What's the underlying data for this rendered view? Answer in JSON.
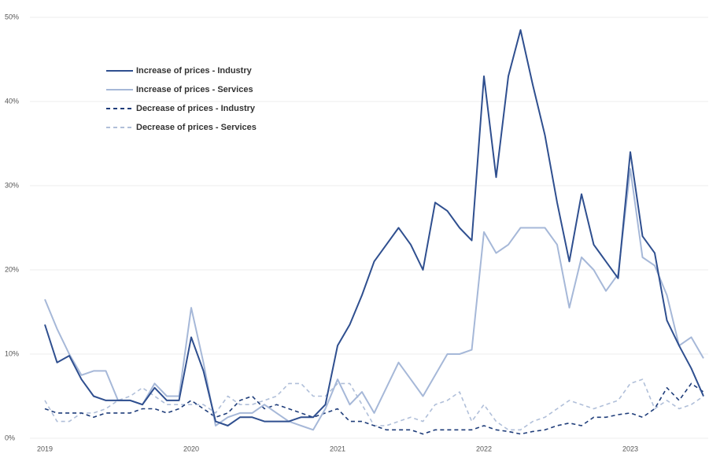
{
  "chart_data": {
    "type": "line",
    "categories": [
      "2019",
      null,
      null,
      null,
      null,
      null,
      null,
      null,
      null,
      null,
      null,
      null,
      "2020",
      null,
      null,
      null,
      null,
      null,
      null,
      null,
      null,
      null,
      null,
      null,
      "2021",
      null,
      null,
      null,
      null,
      null,
      null,
      null,
      null,
      null,
      null,
      null,
      "2022",
      null,
      null,
      null,
      null,
      null,
      null,
      null,
      null,
      null,
      null,
      null,
      "2023",
      null,
      null,
      null,
      null,
      null,
      null
    ],
    "ylim": [
      0,
      50
    ],
    "yticks": [
      {
        "value": 0,
        "label": "0%"
      },
      {
        "value": 10,
        "label": "10%"
      },
      {
        "value": 20,
        "label": "20%"
      },
      {
        "value": 30,
        "label": "30%"
      },
      {
        "value": 40,
        "label": "40%"
      },
      {
        "value": 50,
        "label": "50%"
      }
    ],
    "grid": true,
    "legend": "upper-left",
    "series": [
      {
        "name": "Increase of prices - Industry",
        "color": "#2f4f8f",
        "style": "solid",
        "values": [
          13.5,
          9,
          9.8,
          7,
          5,
          4.5,
          4.5,
          4.5,
          4,
          6,
          4.5,
          4.5,
          12,
          8,
          2,
          1.5,
          2.5,
          2.5,
          2,
          2,
          2,
          2.5,
          2.5,
          4,
          11,
          13.5,
          17,
          21,
          23,
          25,
          23,
          20,
          28,
          27,
          25,
          23.5,
          43,
          31,
          43,
          48.5,
          42,
          36,
          28,
          21,
          29,
          23,
          21,
          19,
          34,
          24,
          22,
          14,
          11,
          8.3,
          5
        ]
      },
      {
        "name": "Increase of prices - Services",
        "color": "#a6b8d8",
        "style": "solid",
        "values": [
          16.5,
          13,
          10,
          7.5,
          8,
          8,
          4.5,
          4.5,
          4,
          6.5,
          5,
          5,
          15.5,
          9,
          1.5,
          2.5,
          3,
          3,
          4,
          3,
          2,
          1.5,
          1,
          3.5,
          7,
          4,
          5.5,
          3,
          6,
          9,
          7,
          5,
          7.5,
          10,
          10,
          10.5,
          24.5,
          22,
          23,
          25,
          25,
          25,
          23,
          15.5,
          21.5,
          20,
          17.5,
          19.5,
          32,
          21.5,
          20.5,
          17,
          11,
          12,
          9.5
        ]
      },
      {
        "name": "Decrease of prices - Industry",
        "color": "#1f3d7a",
        "style": "dashed",
        "values": [
          3.5,
          3,
          3,
          3,
          2.5,
          3,
          3,
          3,
          3.5,
          3.5,
          3,
          3.5,
          4.5,
          3.5,
          2.5,
          3,
          4.5,
          5,
          3.5,
          4,
          3.5,
          3,
          2.5,
          3,
          3.5,
          2,
          2,
          1.5,
          1,
          1,
          1,
          0.5,
          1,
          1,
          1,
          1,
          1.5,
          1,
          0.8,
          0.5,
          0.8,
          1,
          1.5,
          1.8,
          1.5,
          2.5,
          2.5,
          2.8,
          3,
          2.5,
          3.5,
          6,
          4.5,
          6.5,
          5.5
        ]
      },
      {
        "name": "Decrease of prices - Services",
        "color": "#b0bfd9",
        "style": "dashed",
        "values": [
          4.5,
          2,
          2,
          3,
          3,
          3.5,
          4.5,
          5,
          6,
          5,
          4,
          4,
          4,
          4,
          3,
          5,
          4,
          4,
          4.5,
          5,
          6.5,
          6.5,
          5,
          5,
          6.5,
          6.5,
          4,
          1.5,
          1.5,
          2,
          2.5,
          2,
          4,
          4.5,
          5.5,
          2,
          4,
          2,
          1,
          1,
          2,
          2.5,
          3.5,
          4.5,
          4,
          3.5,
          4,
          4.5,
          6.5,
          7,
          3.5,
          4.5,
          3.5,
          4,
          5
        ]
      }
    ]
  }
}
